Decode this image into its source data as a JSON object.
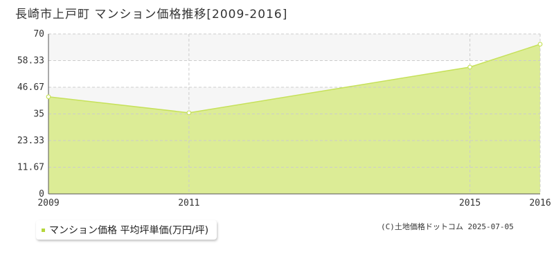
{
  "title": "長崎市上戸町 マンション価格推移[2009-2016]",
  "copyright": "(C)土地価格ドットコム 2025-07-05",
  "colors": {
    "area_fill": "#dcec96",
    "line": "#c6e15a",
    "legend_marker": "#b5d63c",
    "grid": "#cccccc",
    "band": "#f6f6f6"
  },
  "chart_data": {
    "type": "area",
    "x": [
      "2009",
      "2011",
      "2015",
      "2016"
    ],
    "series": [
      {
        "name": "マンション価格 平均坪単価(万円/坪)",
        "values": [
          42.5,
          35.5,
          55.5,
          65.5
        ]
      }
    ],
    "y_ticks": [
      "0",
      "11.67",
      "23.33",
      "35",
      "46.67",
      "58.33",
      "70"
    ],
    "ylim": [
      0,
      70
    ],
    "grid": true,
    "legend": "bottom-left"
  }
}
